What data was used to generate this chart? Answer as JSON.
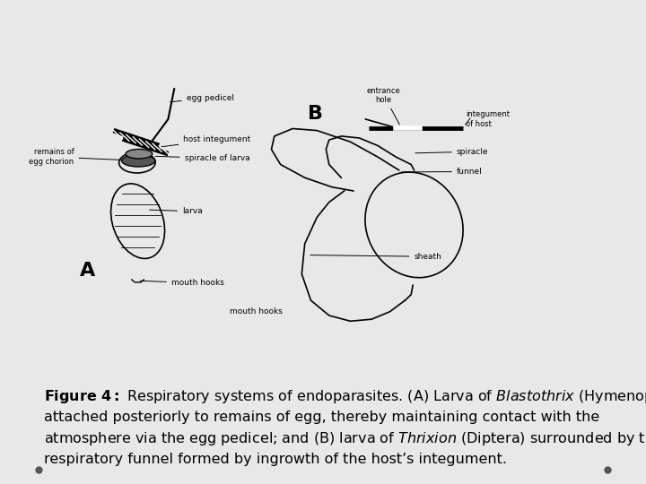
{
  "background_color": "#e8e8e8",
  "panel_bg": "#ffffff",
  "caption_bold": "Figure 4:",
  "label_A": "A",
  "label_B": "B",
  "fig_width": 7.2,
  "fig_height": 5.4,
  "dpi": 100,
  "caption_fontsize": 11.5,
  "label_fontsize": 16,
  "dot_color": "#555555"
}
